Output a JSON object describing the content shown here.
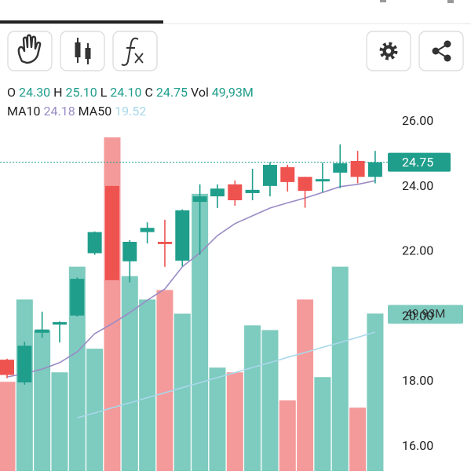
{
  "chart_data": {
    "type": "candlestick",
    "header": [
      {
        "label": "O",
        "value": "24.30"
      },
      {
        "label": "H",
        "value": "25.10"
      },
      {
        "label": "L",
        "value": "24.10"
      },
      {
        "label": "C",
        "value": "24.75"
      },
      {
        "label": "Vol",
        "value": "49,93M"
      }
    ],
    "up_color": "#1f9e8c",
    "down_color": "#ef5350",
    "volume_up_color": "#7ecbbf",
    "volume_down_color": "#f59a9a",
    "candles": {
      "open": [
        18.67,
        17.97,
        19.5,
        19.75,
        20.03,
        21.95,
        24.02,
        21.7,
        22.6,
        22.3,
        21.72,
        23.53,
        23.7,
        24.07,
        23.8,
        24.02,
        24.6,
        24.3,
        24.16,
        24.43,
        24.79,
        24.3
      ],
      "high": [
        18.7,
        19.22,
        20.15,
        19.85,
        21.2,
        22.62,
        24.02,
        22.35,
        22.9,
        22.98,
        23.3,
        24.07,
        24.07,
        24.19,
        24.55,
        24.75,
        24.67,
        24.3,
        24.74,
        25.3,
        25.1,
        25.1
      ],
      "low": [
        18.1,
        17.9,
        19.35,
        19.2,
        20.0,
        21.9,
        21.12,
        21.05,
        22.25,
        21.53,
        21.55,
        21.9,
        23.34,
        23.41,
        23.58,
        23.7,
        23.85,
        23.35,
        23.82,
        23.95,
        24.1,
        24.1
      ],
      "close": [
        18.2,
        19.1,
        19.6,
        19.83,
        21.16,
        22.6,
        21.12,
        22.3,
        22.73,
        22.23,
        23.27,
        23.7,
        23.94,
        23.58,
        23.9,
        24.67,
        24.14,
        23.87,
        24.23,
        24.72,
        24.3,
        24.75
      ]
    },
    "volume": [
      28.3,
      54.4,
      44.7,
      31.3,
      64.8,
      38.8,
      105.8,
      61.8,
      54.4,
      57.4,
      49.9,
      87.9,
      32.8,
      31.3,
      46.2,
      44.7,
      22.4,
      54.4,
      29.8,
      64.8,
      20.1,
      49.93
    ],
    "volume_ylim": [
      0,
      112
    ],
    "volume_label": {
      "value": 49.93,
      "label": "49.93M"
    },
    "series": [
      {
        "name": "MA10",
        "color": "#9a8bc6",
        "current_label": "24.18",
        "values": [
          18.14,
          18.24,
          18.38,
          18.58,
          18.91,
          19.47,
          19.78,
          20.12,
          20.5,
          20.85,
          21.53,
          21.96,
          22.49,
          22.86,
          23.1,
          23.34,
          23.5,
          23.65,
          23.82,
          24.0,
          24.07,
          24.18
        ]
      },
      {
        "name": "MA50",
        "color": "#a9d8ea",
        "current_label": "19.52",
        "values": [
          null,
          null,
          null,
          null,
          16.88,
          17.03,
          17.19,
          17.34,
          17.5,
          17.65,
          17.81,
          17.96,
          18.12,
          18.27,
          18.43,
          18.58,
          18.74,
          18.89,
          19.05,
          19.2,
          19.36,
          19.52
        ]
      }
    ],
    "price_line": {
      "value": 24.75,
      "label": "24.75"
    },
    "ylim": [
      15.24,
      26.12
    ],
    "yticks": [
      {
        "value": 16,
        "label": "16.00"
      },
      {
        "value": 18,
        "label": "18.00"
      },
      {
        "value": 20,
        "label": "20.00"
      },
      {
        "value": 22,
        "label": "22.00"
      },
      {
        "value": 24,
        "label": "24.00"
      },
      {
        "value": 26,
        "label": "26.00"
      }
    ]
  }
}
